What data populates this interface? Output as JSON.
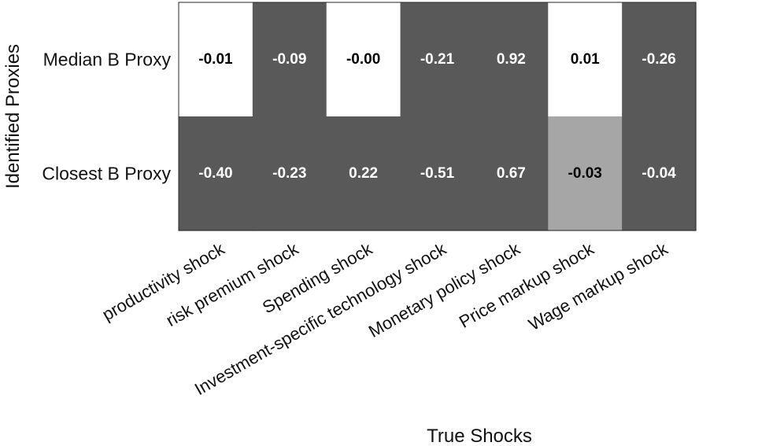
{
  "chart_data": {
    "type": "heatmap",
    "xlabel": "True Shocks",
    "ylabel": "Identified Proxies",
    "rows": [
      "Median B Proxy",
      "Closest B Proxy"
    ],
    "columns": [
      "productivity shock",
      "risk premium shock",
      "Spending shock",
      "Investment-specific technology shock",
      "Monetary policy shock",
      "Price markup shock",
      "Wage markup shock"
    ],
    "values": [
      [
        "-0.01",
        "-0.09",
        "-0.00",
        "-0.21",
        "0.92",
        "0.01",
        "-0.26"
      ],
      [
        "-0.40",
        "-0.23",
        "0.22",
        "-0.51",
        "0.67",
        "-0.03",
        "-0.04"
      ]
    ],
    "colors": {
      "high": "#ffffff",
      "mid": "#a6a6a6",
      "low": "#595959",
      "dark_text": "#000000",
      "light_text": "#ffffff"
    },
    "cell_shades": [
      [
        "high",
        "low",
        "high",
        "low",
        "low",
        "high",
        "low"
      ],
      [
        "low",
        "low",
        "low",
        "low",
        "low",
        "mid",
        "low"
      ]
    ],
    "grid": false
  }
}
